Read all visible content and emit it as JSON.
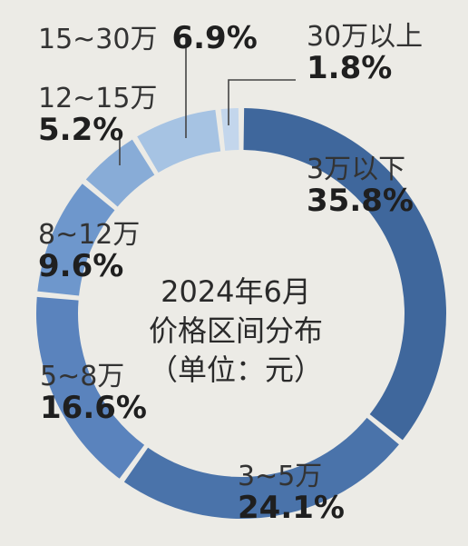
{
  "chart_data": {
    "type": "pie",
    "title": "2024年6月",
    "subtitle": "价格区间分布",
    "unit_note": "（单位：元）",
    "slices": [
      {
        "label": "3万以下",
        "value": 35.8,
        "value_label": "35.8%",
        "color": "#3f679c"
      },
      {
        "label": "3~5万",
        "value": 24.1,
        "value_label": "24.1%",
        "color": "#4a73aa"
      },
      {
        "label": "5~8万",
        "value": 16.6,
        "value_label": "16.6%",
        "color": "#5a83bd"
      },
      {
        "label": "8~12万",
        "value": 9.6,
        "value_label": "9.6%",
        "color": "#6e97cc"
      },
      {
        "label": "12~15万",
        "value": 5.2,
        "value_label": "5.2%",
        "color": "#88acd7"
      },
      {
        "label": "15~30万",
        "value": 6.9,
        "value_label": "6.9%",
        "color": "#a6c3e3"
      },
      {
        "label": "30万以上",
        "value": 1.8,
        "value_label": "1.8%",
        "color": "#c3d6ec"
      }
    ],
    "style": "donut"
  }
}
